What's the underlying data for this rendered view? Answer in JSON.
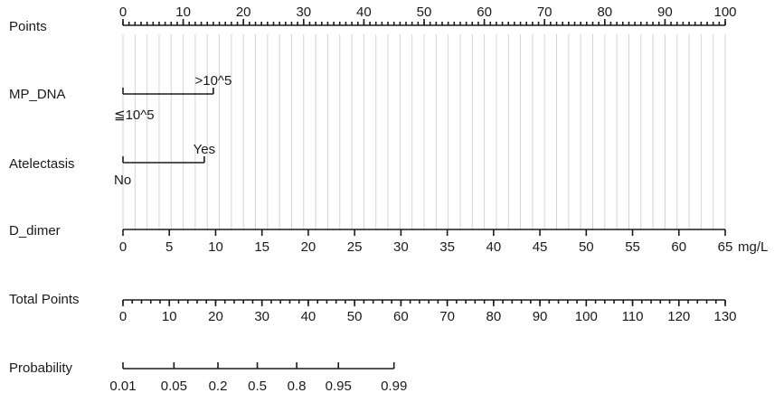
{
  "chart_data": {
    "type": "nomogram",
    "title": "",
    "rows": [
      {
        "id": "points",
        "name": "Points",
        "kind": "scale",
        "min": 0,
        "max": 100,
        "labels": [
          "0",
          "10",
          "20",
          "30",
          "40",
          "50",
          "60",
          "70",
          "80",
          "90",
          "100"
        ],
        "label_values": [
          0,
          10,
          20,
          30,
          40,
          50,
          60,
          70,
          80,
          90,
          100
        ],
        "minor_step": 1
      },
      {
        "id": "mp_dna",
        "name": "MP_DNA",
        "kind": "categorical",
        "categories": [
          "≦10^5",
          ">10^5"
        ],
        "points": [
          0,
          15
        ]
      },
      {
        "id": "atelectasis",
        "name": "Atelectasis",
        "kind": "categorical",
        "categories": [
          "No",
          "Yes"
        ],
        "points": [
          0,
          13.5
        ]
      },
      {
        "id": "d_dimer",
        "name": "D_dimer",
        "kind": "scale",
        "min": 0,
        "max": 65,
        "unit": "mg/L",
        "labels": [
          "0",
          "5",
          "10",
          "15",
          "20",
          "25",
          "30",
          "35",
          "40",
          "45",
          "50",
          "55",
          "60",
          "65"
        ],
        "label_values": [
          0,
          5,
          10,
          15,
          20,
          25,
          30,
          35,
          40,
          45,
          50,
          55,
          60,
          65
        ],
        "points_range": [
          0,
          100
        ]
      },
      {
        "id": "total",
        "name": "Total Points",
        "kind": "scale",
        "min": 0,
        "max": 130,
        "labels": [
          "0",
          "10",
          "20",
          "30",
          "40",
          "50",
          "60",
          "70",
          "80",
          "90",
          "100",
          "110",
          "120",
          "130"
        ],
        "label_values": [
          0,
          10,
          20,
          30,
          40,
          50,
          60,
          70,
          80,
          90,
          100,
          110,
          120,
          130
        ],
        "minor_step": 2
      },
      {
        "id": "prob",
        "name": "Probability",
        "kind": "probability",
        "labels": [
          "0.01",
          "0.05",
          "0.2",
          "0.5",
          "0.8",
          "0.95",
          "0.99"
        ],
        "label_values": [
          0.01,
          0.05,
          0.2,
          0.5,
          0.8,
          0.95,
          0.99
        ],
        "total_points_at": [
          0,
          11,
          20.5,
          29,
          37.5,
          46.5,
          58.5
        ]
      }
    ],
    "grid": true
  }
}
